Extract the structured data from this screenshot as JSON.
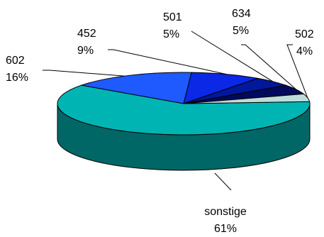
{
  "chart_data": {
    "type": "pie",
    "title": "",
    "style": "3d-tilted",
    "slices": [
      {
        "label": "sonstige",
        "percent": "61%",
        "value": 61,
        "color": "#00B4B4",
        "side_color": "#006666"
      },
      {
        "label": "602",
        "percent": "16%",
        "value": 16,
        "color": "#1E5AFF",
        "side_color": "#0F2D80"
      },
      {
        "label": "452",
        "percent": "9%",
        "value": 9,
        "color": "#0A28E6",
        "side_color": "#051473"
      },
      {
        "label": "501",
        "percent": "5%",
        "value": 5,
        "color": "#00189C",
        "side_color": "#000C4E"
      },
      {
        "label": "634",
        "percent": "5%",
        "value": 5,
        "color": "#000A5A",
        "side_color": "#00052D"
      },
      {
        "label": "502",
        "percent": "4%",
        "value": 4,
        "color": "#BEDCDC",
        "side_color": "#5F6E6E"
      }
    ]
  }
}
